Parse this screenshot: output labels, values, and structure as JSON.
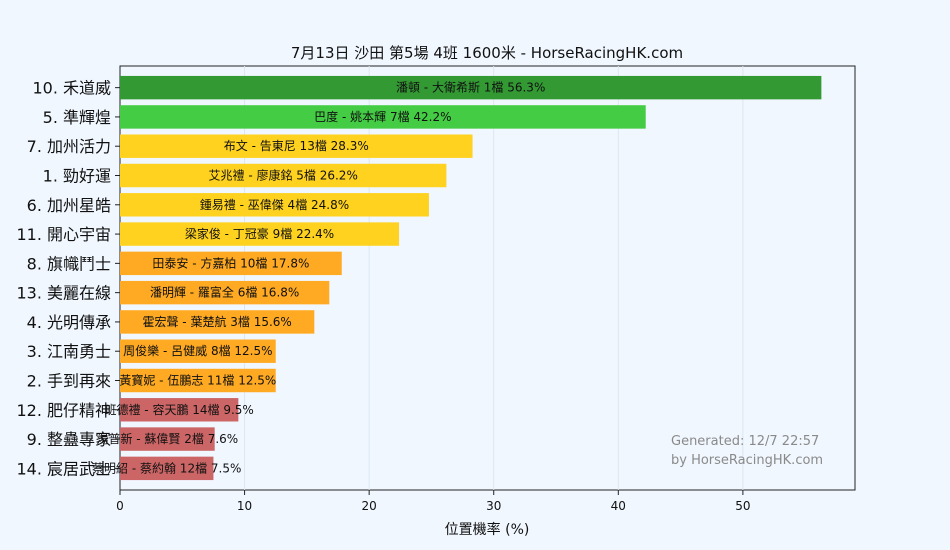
{
  "chart_data": {
    "type": "bar",
    "orientation": "horizontal",
    "title": "7月13日 沙田 第5場 4班 1600米 - HorseRacingHK.com",
    "xlabel": "位置機率 (%)",
    "ylabel": "",
    "xlim": [
      0,
      59
    ],
    "xticks": [
      0,
      10,
      20,
      30,
      40,
      50
    ],
    "grid": true,
    "categories": [
      "10. 禾道威",
      "5. 準輝煌",
      "7. 加州活力",
      "1. 勁好運",
      "6. 加州星皓",
      "11. 開心宇宙",
      "8. 旗幟鬥士",
      "13. 美麗在線",
      "4. 光明傳承",
      "3. 江南勇士",
      "2. 手到再來",
      "12. 肥仔精神",
      "9. 整蠱專家",
      "14. 宸居武士"
    ],
    "values": [
      56.3,
      42.2,
      28.3,
      26.2,
      24.8,
      22.4,
      17.8,
      16.8,
      15.6,
      12.5,
      12.5,
      9.5,
      7.6,
      7.5
    ],
    "bar_labels": [
      "潘頓 - 大衛希斯 1檔  56.3%",
      "巴度 - 姚本輝 7檔  42.2%",
      "布文 - 告東尼 13檔  28.3%",
      "艾兆禮 - 廖康銘 5檔  26.2%",
      "鍾易禮 - 巫偉傑 4檔  24.8%",
      "梁家俊 - 丁冠豪 9檔  22.4%",
      "田泰安 - 方嘉柏 10檔  17.8%",
      "潘明輝 - 羅富全 6檔  16.8%",
      "霍宏聲 - 葉楚航 3檔  15.6%",
      "周俊樂 - 呂健威 8檔  12.5%",
      "黃寶妮 - 伍鵬志 11檔  12.5%",
      "班德禮 - 容天鵬 14檔  9.5%",
      "湯普新 - 蘇偉賢 2檔  7.6%",
      "蔡明紹 - 蔡約翰 12檔  7.5%"
    ],
    "bar_colors": [
      "#339933",
      "#44cc44",
      "#ffd21f",
      "#ffd21f",
      "#ffd21f",
      "#ffd21f",
      "#ffaa22",
      "#ffaa22",
      "#ffaa22",
      "#ffaa22",
      "#ffaa22",
      "#cc6666",
      "#cc6666",
      "#cc6666"
    ],
    "footer": [
      "Generated: 12/7 22:57",
      "by HorseRacingHK.com"
    ]
  }
}
